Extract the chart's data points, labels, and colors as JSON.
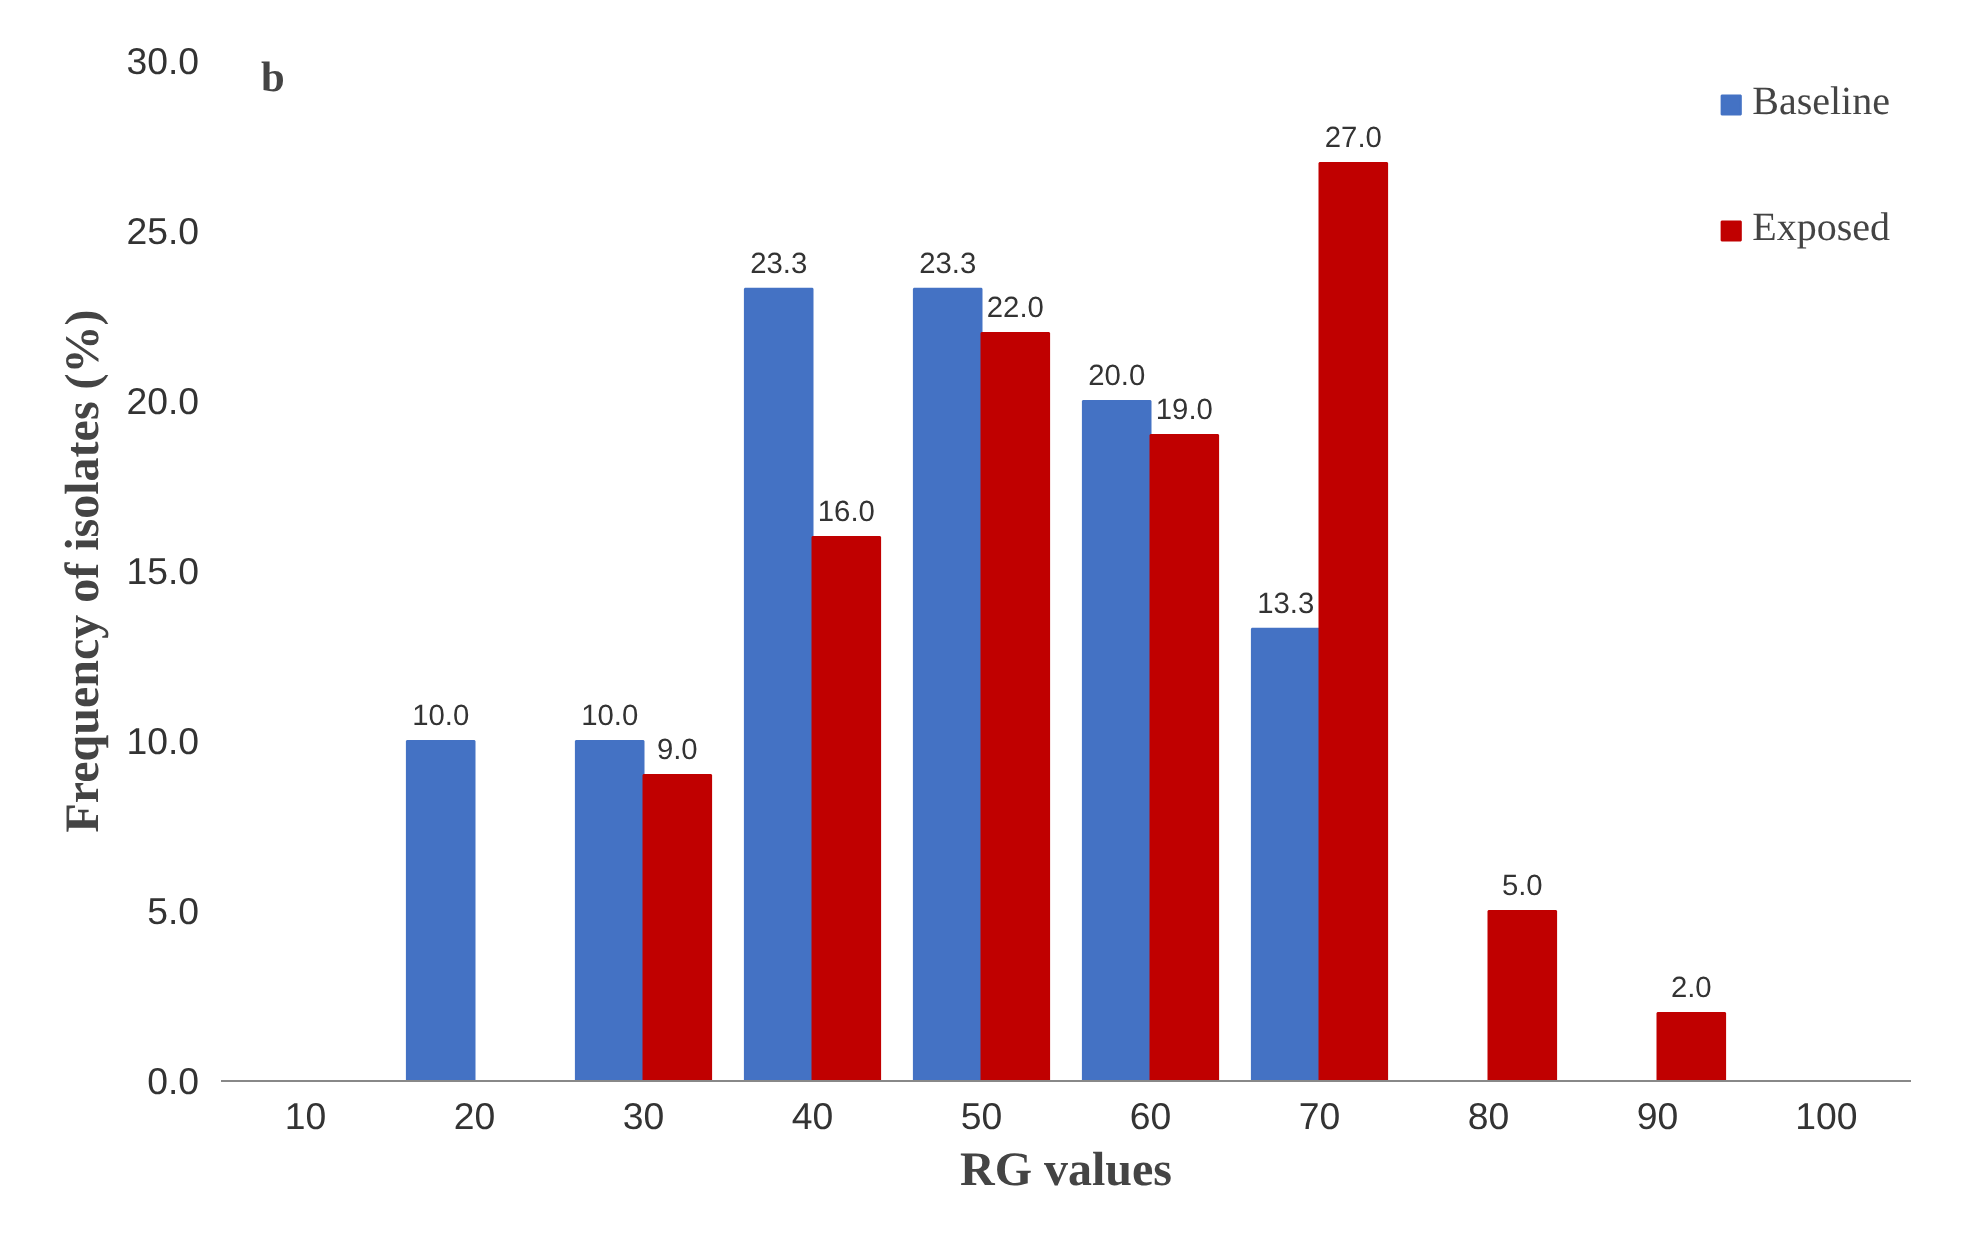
{
  "chart_data": {
    "type": "bar",
    "xlabel": "RG values",
    "ylabel": "Frequency of isolates (%)",
    "annotations": [
      "b"
    ],
    "categories": [
      "10",
      "20",
      "30",
      "40",
      "50",
      "60",
      "70",
      "80",
      "90",
      "100"
    ],
    "series": [
      {
        "name": "Baseline",
        "color": "#4472c4",
        "values": [
          null,
          10,
          10,
          23.3,
          23.3,
          20,
          13.3,
          null,
          null,
          null
        ],
        "value_labels": [
          null,
          "10.0",
          "10.0",
          "23.3",
          "23.3",
          "20.0",
          "13.3",
          null,
          null,
          null
        ]
      },
      {
        "name": "Exposed",
        "color": "#c00000",
        "values": [
          null,
          null,
          9,
          16,
          22,
          19,
          27,
          5,
          2,
          null
        ],
        "value_labels": [
          null,
          null,
          "9.0",
          "16.0",
          "22.0",
          "19.0",
          "27.0",
          "5.0",
          "2.0",
          null
        ]
      }
    ],
    "ylim": [
      0,
      30
    ],
    "yticks": [
      {
        "value": 0,
        "label": "0.0"
      },
      {
        "value": 5,
        "label": "5.0"
      },
      {
        "value": 10,
        "label": "10.0"
      },
      {
        "value": 15,
        "label": "15.0"
      },
      {
        "value": 20,
        "label": "20.0"
      },
      {
        "value": 25,
        "label": "25.0"
      },
      {
        "value": 30,
        "label": "30.0"
      }
    ],
    "grid": false,
    "legend": "top right"
  }
}
